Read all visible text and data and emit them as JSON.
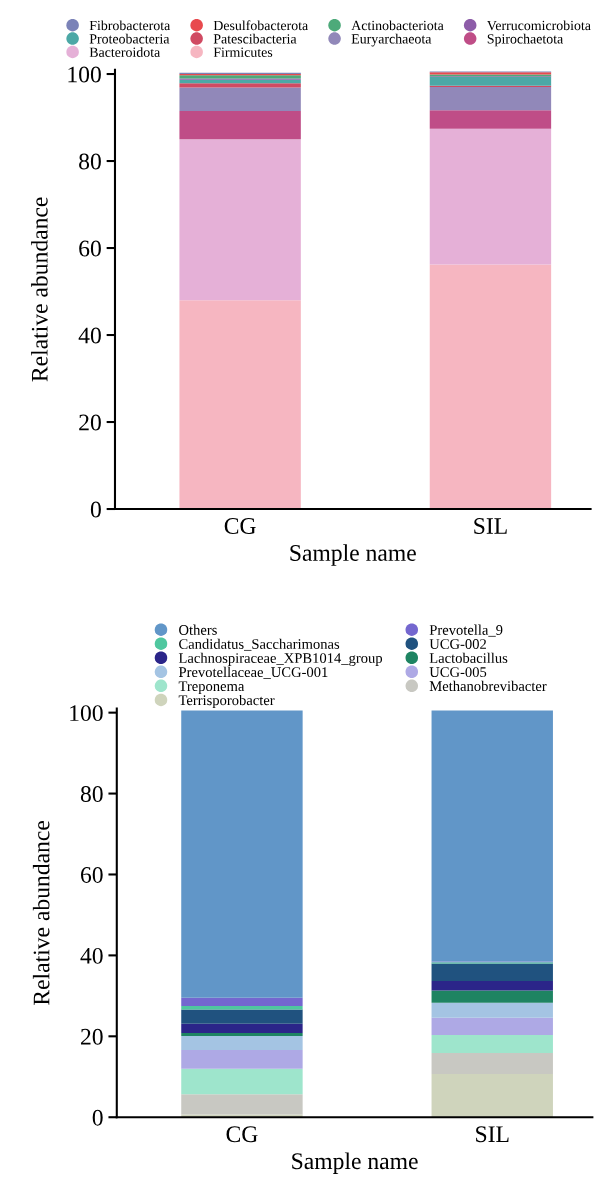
{
  "chart_data": [
    {
      "type": "bar",
      "stacked": true,
      "categories": [
        "CG",
        "SIL"
      ],
      "xlabel": "Sample name",
      "ylabel": "Relative abundance",
      "ylim": [
        0,
        101
      ],
      "yticks": [
        0,
        20,
        40,
        60,
        80,
        100
      ],
      "legend": "top",
      "grid": false,
      "series": [
        {
          "name": "Firmicutes",
          "color": "#f6b6c1",
          "values": [
            48.0,
            56.2
          ]
        },
        {
          "name": "Bacteroidota",
          "color": "#e5b0d7",
          "values": [
            37.0,
            31.2
          ]
        },
        {
          "name": "Spirochaetota",
          "color": "#bf4d87",
          "values": [
            6.5,
            4.3
          ]
        },
        {
          "name": "Euryarchaeota",
          "color": "#9188b9",
          "values": [
            5.4,
            5.3
          ]
        },
        {
          "name": "Patescibacteria",
          "color": "#d04a62",
          "values": [
            1.0,
            0.3
          ]
        },
        {
          "name": "Proteobacteria",
          "color": "#4ca8a6",
          "values": [
            0.8,
            2.0
          ]
        },
        {
          "name": "Verrucomicrobiota",
          "color": "#8d5ca8",
          "values": [
            0.3,
            0.2
          ]
        },
        {
          "name": "Actinobacteriota",
          "color": "#4daa7a",
          "values": [
            0.7,
            0.4
          ]
        },
        {
          "name": "Desulfobacterota",
          "color": "#e84a4e",
          "values": [
            0.3,
            0.5
          ]
        },
        {
          "name": "Fibrobacterota",
          "color": "#7b83b8",
          "values": [
            0.3,
            0.2
          ]
        }
      ]
    },
    {
      "type": "bar",
      "stacked": true,
      "categories": [
        "CG",
        "SIL"
      ],
      "xlabel": "Sample name",
      "ylabel": "Relative abundance",
      "ylim": [
        0,
        101
      ],
      "yticks": [
        0,
        20,
        40,
        60,
        80,
        100
      ],
      "legend": "top",
      "grid": false,
      "series": [
        {
          "name": "Terrisporobacter",
          "color": "#cfd4bc",
          "values": [
            0.7,
            10.7
          ]
        },
        {
          "name": "Methanobrevibacter",
          "color": "#c8c8c2",
          "values": [
            5.0,
            5.2
          ]
        },
        {
          "name": "Treponema",
          "color": "#9ee5cc",
          "values": [
            6.3,
            4.4
          ]
        },
        {
          "name": "UCG-005",
          "color": "#aea9e5",
          "values": [
            4.6,
            4.3
          ]
        },
        {
          "name": "Prevotellaceae_UCG-001",
          "color": "#a4c4e3",
          "values": [
            3.5,
            3.7
          ]
        },
        {
          "name": "Lactobacillus",
          "color": "#1e8462",
          "values": [
            0.7,
            3.0
          ]
        },
        {
          "name": "Lachnospiraceae_XPB1014_group",
          "color": "#2b2589",
          "values": [
            2.3,
            2.4
          ]
        },
        {
          "name": "UCG-002",
          "color": "#20527f",
          "values": [
            3.5,
            4.3
          ]
        },
        {
          "name": "Candidatus_Saccharimonas",
          "color": "#4fc79f",
          "values": [
            0.9,
            0.3
          ]
        },
        {
          "name": "Prevotella_9",
          "color": "#7467cf",
          "values": [
            2.0,
            0.2
          ]
        },
        {
          "name": "Others",
          "color": "#6196c8",
          "values": [
            71.0,
            62.0
          ]
        }
      ]
    }
  ]
}
